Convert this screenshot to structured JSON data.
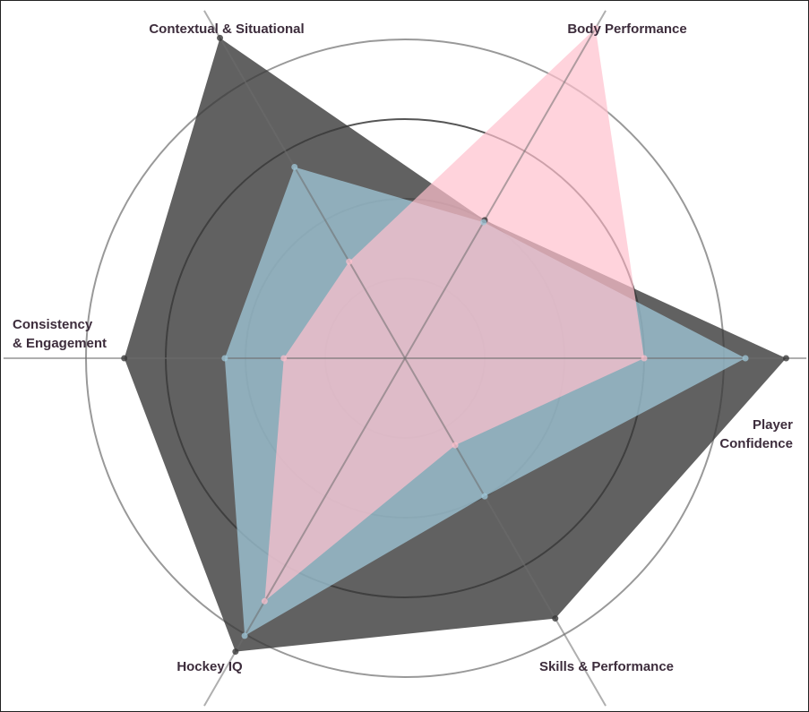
{
  "chart_data": {
    "type": "radar",
    "categories": [
      [
        "Player",
        "Confidence"
      ],
      [
        "Body Performance"
      ],
      [
        "Contextual & Situational"
      ],
      [
        "Consistency",
        "& Engagement"
      ],
      [
        "Hockey IQ"
      ],
      [
        "Skills & Performance"
      ]
    ],
    "rlim": [
      0,
      5
    ],
    "rticks": [
      1,
      2,
      3,
      4
    ],
    "grid": true,
    "series": [
      {
        "color": "rgba(58,58,58,0.8)",
        "values": [
          4.78,
          2.0,
          4.64,
          3.52,
          4.25,
          3.77
        ]
      },
      {
        "color": "rgba(160,200,218,0.75)",
        "values": [
          4.27,
          1.97,
          2.77,
          2.26,
          4.02,
          2.0
        ]
      },
      {
        "color": "rgba(255,192,205,0.7)",
        "values": [
          3.0,
          4.78,
          1.4,
          1.52,
          3.52,
          1.26
        ]
      }
    ]
  }
}
